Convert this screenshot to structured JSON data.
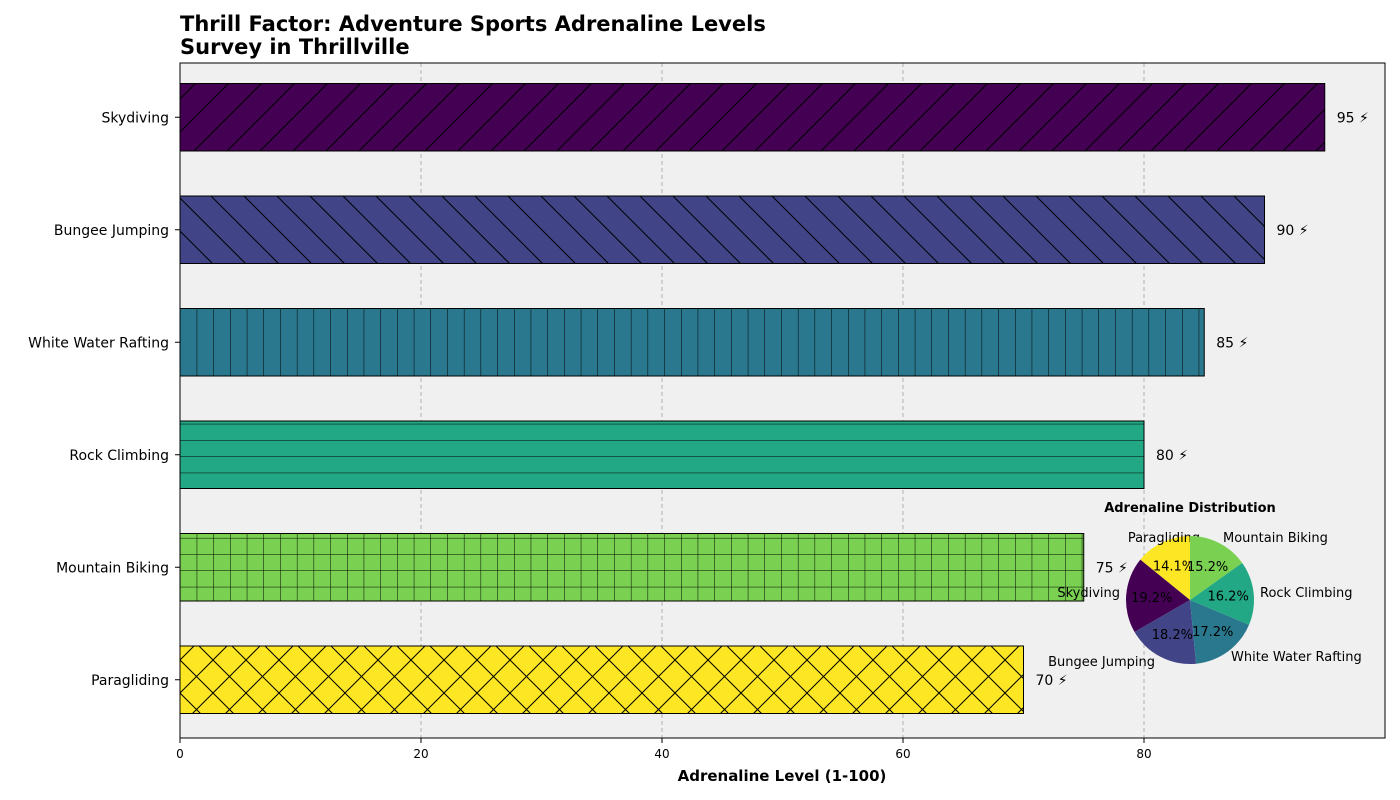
{
  "chart_data": {
    "type": "bar",
    "orientation": "horizontal",
    "title": "Thrill Factor: Adventure Sports Adrenaline Levels\nSurvey in Thrillville",
    "xlabel": "Adrenaline Level (1-100)",
    "ylabel": "",
    "xlim": [
      0,
      100
    ],
    "xticks": [
      0,
      20,
      40,
      60,
      80
    ],
    "grid": "x-dashed",
    "value_suffix": " ⚡",
    "categories": [
      "Skydiving",
      "Bungee Jumping",
      "White Water Rafting",
      "Rock Climbing",
      "Mountain Biking",
      "Paragliding"
    ],
    "values": [
      95,
      90,
      85,
      80,
      75,
      70
    ],
    "colors": [
      "#440154",
      "#414487",
      "#2a788e",
      "#22a884",
      "#7ad151",
      "#fde725"
    ],
    "hatches": [
      "forward-diagonal",
      "back-diagonal",
      "vertical",
      "horizontal",
      "grid",
      "cross-diagonal"
    ],
    "background": "#f0f0f0",
    "inset_pie": {
      "title": "Adrenaline Distribution",
      "labels": [
        "Skydiving",
        "Bungee Jumping",
        "White Water Rafting",
        "Rock Climbing",
        "Mountain Biking",
        "Paragliding"
      ],
      "values": [
        95,
        90,
        85,
        80,
        75,
        70
      ],
      "percent_labels": [
        "19.2%",
        "18.2%",
        "17.2%",
        "16.2%",
        "15.2%",
        "14.1%"
      ],
      "placement": "lower-right"
    }
  }
}
